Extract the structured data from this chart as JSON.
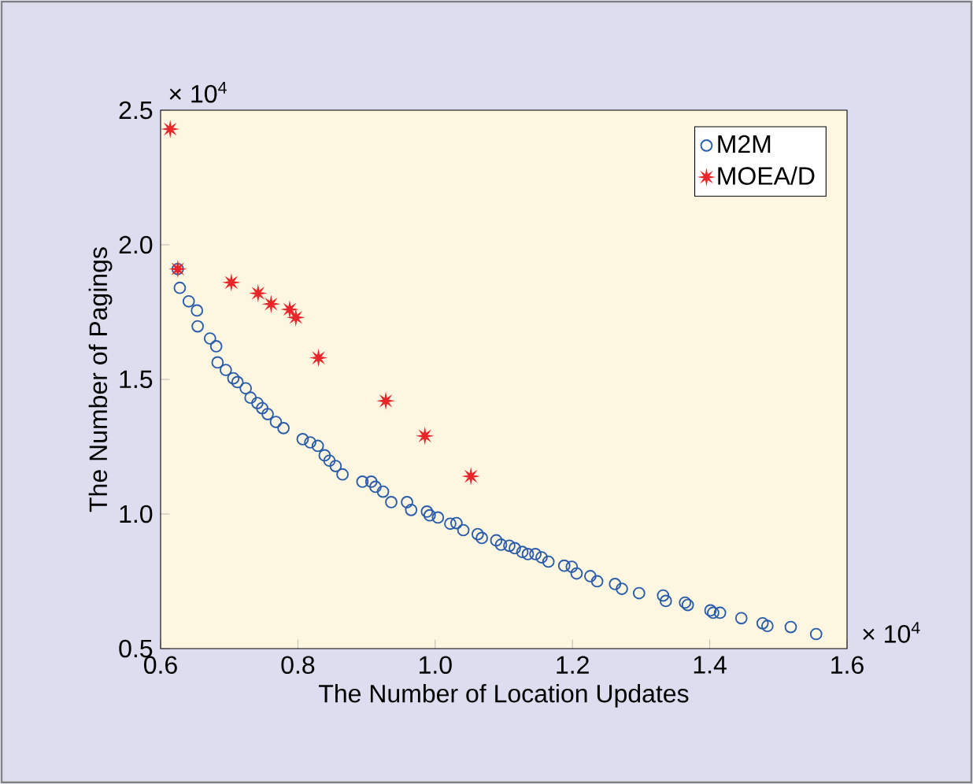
{
  "chart_data": {
    "type": "scatter",
    "xlabel": "The Number of Location Updates",
    "ylabel": "The Number of Pagings",
    "xlim": [
      0.6,
      1.6
    ],
    "ylim": [
      0.5,
      2.5
    ],
    "xticks": [
      {
        "value": 0.6,
        "label": "0.6"
      },
      {
        "value": 0.8,
        "label": "0.8"
      },
      {
        "value": 1.0,
        "label": "1.0"
      },
      {
        "value": 1.2,
        "label": "1.2"
      },
      {
        "value": 1.4,
        "label": "1.4"
      },
      {
        "value": 1.6,
        "label": "1.6"
      }
    ],
    "yticks": [
      {
        "value": 0.5,
        "label": "0.5"
      },
      {
        "value": 1.0,
        "label": "1.0"
      },
      {
        "value": 1.5,
        "label": "1.5"
      },
      {
        "value": 2.0,
        "label": "2.0"
      },
      {
        "value": 2.5,
        "label": "2.5"
      }
    ],
    "annotations": [
      "× 10$^{4}$",
      "× 10$^{4}$"
    ],
    "legend": "top right",
    "grid": false,
    "series": [
      {
        "name": "M2M",
        "color": "#2a5caa",
        "marker": "circle",
        "x": [
          0.625,
          0.628,
          0.641,
          0.653,
          0.654,
          0.672,
          0.681,
          0.683,
          0.695,
          0.706,
          0.712,
          0.724,
          0.731,
          0.741,
          0.748,
          0.756,
          0.768,
          0.779,
          0.807,
          0.818,
          0.829,
          0.839,
          0.846,
          0.855,
          0.865,
          0.894,
          0.907,
          0.913,
          0.924,
          0.936,
          0.959,
          0.965,
          0.988,
          0.992,
          1.004,
          1.022,
          1.031,
          1.041,
          1.062,
          1.068,
          1.089,
          1.096,
          1.108,
          1.116,
          1.127,
          1.135,
          1.146,
          1.155,
          1.165,
          1.188,
          1.199,
          1.206,
          1.226,
          1.236,
          1.262,
          1.272,
          1.297,
          1.332,
          1.336,
          1.364,
          1.368,
          1.401,
          1.405,
          1.415,
          1.446,
          1.477,
          1.484,
          1.518,
          1.555
        ],
        "values": [
          1.91,
          1.84,
          1.79,
          1.756,
          1.697,
          1.652,
          1.623,
          1.563,
          1.535,
          1.504,
          1.49,
          1.467,
          1.432,
          1.412,
          1.393,
          1.371,
          1.342,
          1.319,
          1.278,
          1.266,
          1.253,
          1.218,
          1.198,
          1.178,
          1.147,
          1.12,
          1.12,
          1.101,
          1.083,
          1.044,
          1.044,
          1.015,
          1.009,
          0.995,
          0.987,
          0.964,
          0.966,
          0.94,
          0.925,
          0.911,
          0.902,
          0.886,
          0.882,
          0.873,
          0.859,
          0.851,
          0.851,
          0.839,
          0.823,
          0.808,
          0.804,
          0.779,
          0.769,
          0.75,
          0.74,
          0.722,
          0.706,
          0.697,
          0.677,
          0.671,
          0.662,
          0.642,
          0.633,
          0.633,
          0.613,
          0.594,
          0.584,
          0.58,
          0.554
        ]
      },
      {
        "name": "MOEA/D",
        "color": "#e8262a",
        "marker": "star",
        "x": [
          0.614,
          0.625,
          0.703,
          0.742,
          0.761,
          0.788,
          0.797,
          0.83,
          0.928,
          0.985,
          1.052
        ],
        "values": [
          2.43,
          1.91,
          1.86,
          1.82,
          1.78,
          1.76,
          1.73,
          1.58,
          1.42,
          1.29,
          1.14
        ]
      }
    ]
  }
}
